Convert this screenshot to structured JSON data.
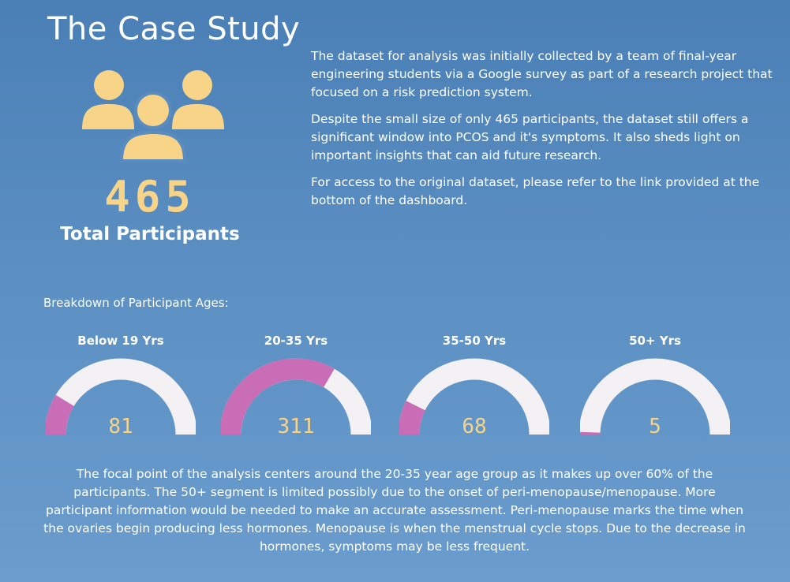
{
  "title": "The Case Study",
  "summary": {
    "count": "465",
    "label": "Total Participants",
    "icon": "people-group-icon"
  },
  "intro": {
    "p1": "The dataset for analysis was initially collected by a team of final-year engineering students via a Google survey as part of a research project that focused on a risk prediction system.",
    "p2": "Despite the small size of only 465 participants, the dataset still offers a significant window into PCOS and it's symptoms.  It also sheds light on important insights that can aid future research.",
    "p3": "For access to the original dataset, please refer to the link provided at the bottom of the dashboard."
  },
  "breakdown_label": "Breakdown of Participant Ages:",
  "colors": {
    "accent": "#f7d488",
    "gauge_fill": "#c96eb6",
    "gauge_track": "#f3f1f3"
  },
  "chart_data": {
    "type": "gauge",
    "total": 465,
    "categories": [
      "Below 19 Yrs",
      "20-35 Yrs",
      "35-50 Yrs",
      "50+ Yrs"
    ],
    "values": [
      81,
      311,
      68,
      5
    ],
    "range": [
      0,
      465
    ]
  },
  "footer": "The focal point of the analysis centers around the 20-35 year age group as it makes up over 60% of the participants. The 50+ segment is limited possibly due to the onset of peri-menopause/menopause.  More participant information would be needed to make an accurate assessment.  Peri-menopause marks the time when the ovaries begin producing less hormones. Menopause is when the menstrual cycle stops.  Due to the decrease in hormones, symptoms may be less frequent."
}
